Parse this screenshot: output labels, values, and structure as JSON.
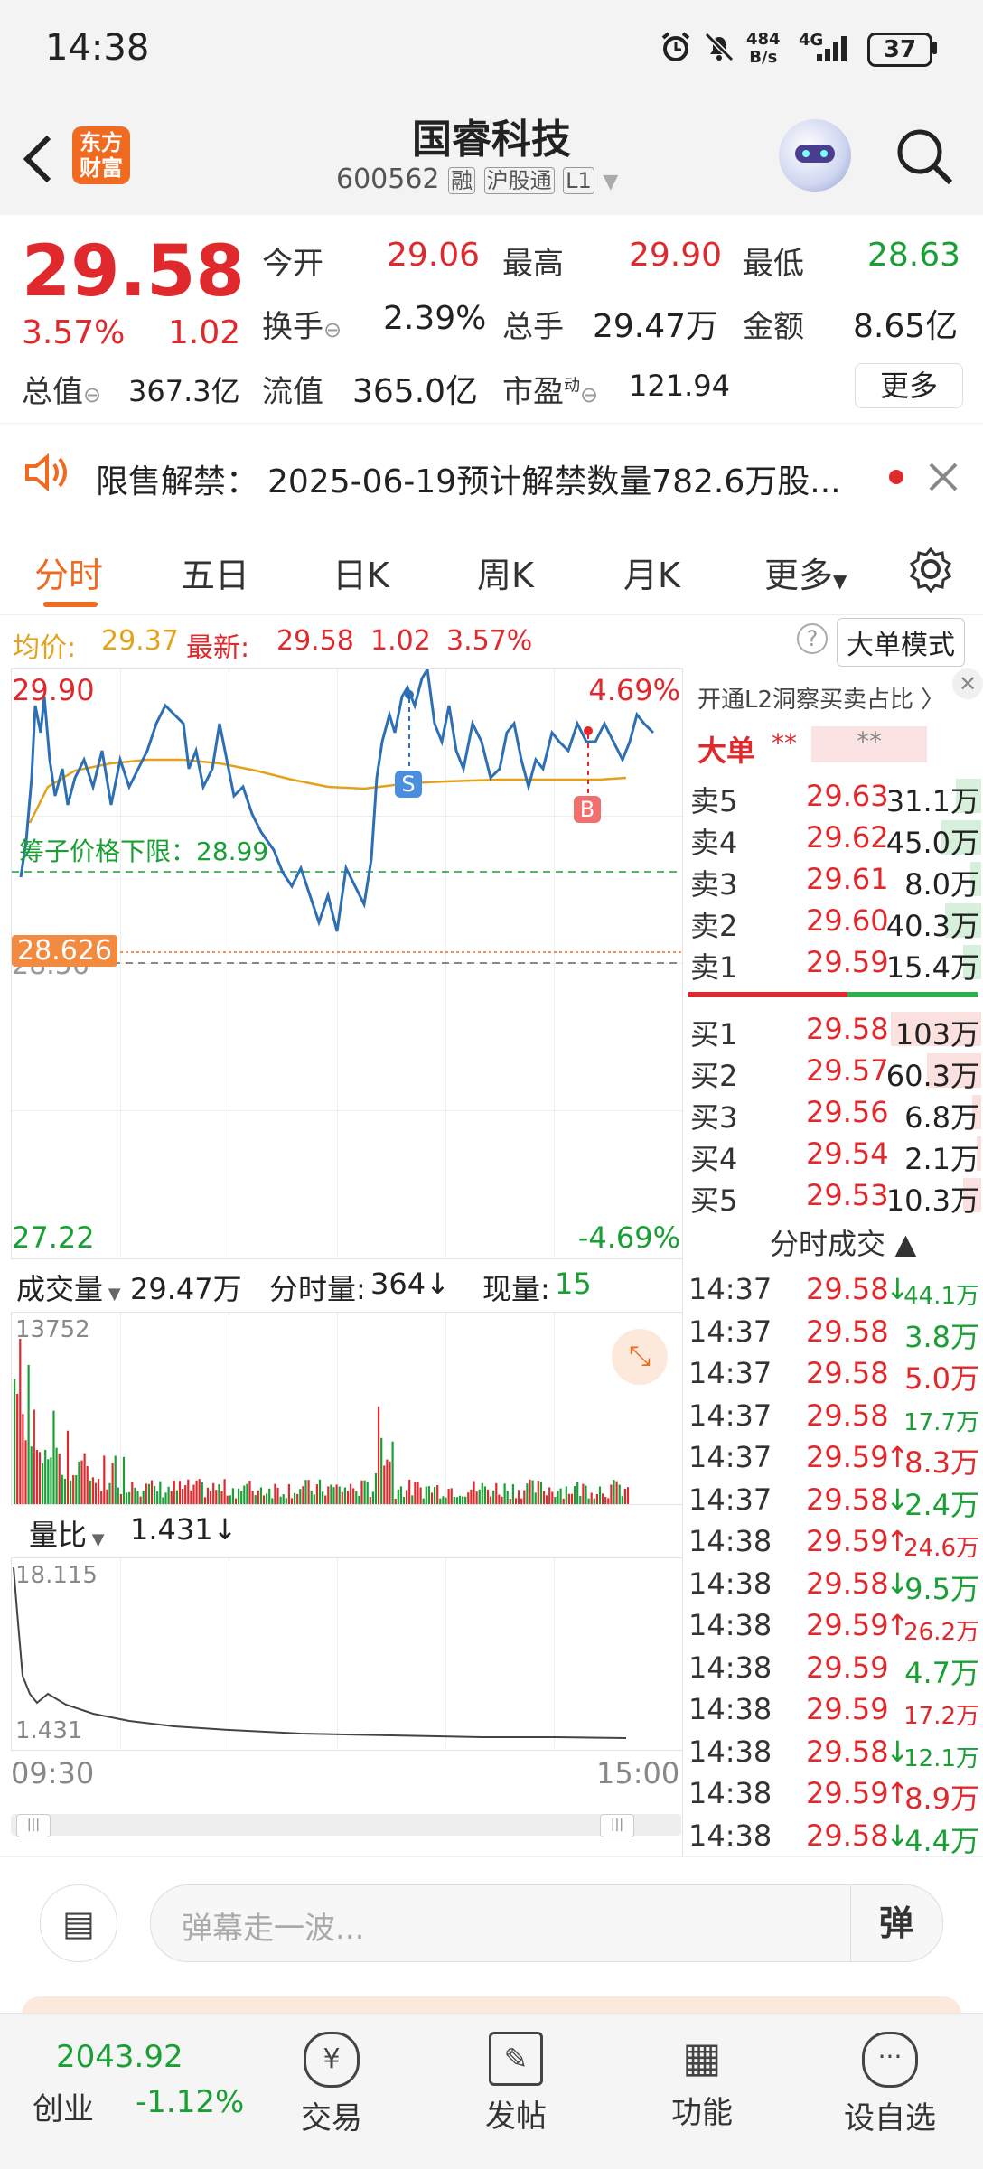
{
  "status_bar": {
    "time": "14:38",
    "net_speed_value": "484",
    "net_speed_unit": "B/s",
    "network": "4G",
    "battery": "37"
  },
  "header": {
    "title": "国睿科技",
    "code": "600562",
    "tags": [
      "融",
      "沪股通",
      "L1"
    ],
    "logo_line1": "东方",
    "logo_line2": "财富"
  },
  "quote": {
    "price": "29.58",
    "change_pct": "3.57%",
    "change": "1.02",
    "open_label": "今开",
    "open": "29.06",
    "high_label": "最高",
    "high": "29.90",
    "low_label": "最低",
    "low": "28.63",
    "turnover_label": "换手",
    "turnover": "2.39%",
    "volume_label": "总手",
    "volume": "29.47万",
    "amount_label": "金额",
    "amount": "8.65亿",
    "mktcap_label": "总值",
    "mktcap": "367.3亿",
    "float_label": "流值",
    "float_cap": "365.0亿",
    "pe_label": "市盈",
    "pe_sup": "动",
    "pe": "121.94",
    "more_label": "更多"
  },
  "notice": {
    "label": "限售解禁：",
    "text": "2025-06-19预计解禁数量782.6万股..."
  },
  "tabs": [
    "分时",
    "五日",
    "日K",
    "周K",
    "月K",
    "更多"
  ],
  "avg_bar": {
    "avg_label": "均价:",
    "avg": "29.37",
    "latest_label": "最新:",
    "latest": "29.58",
    "change": "1.02",
    "change_pct": "3.57%",
    "mode_label": "大单模式"
  },
  "price_chart": {
    "top_price": "29.90",
    "top_pct": "4.69%",
    "bottom_price": "27.22",
    "bottom_pct": "-4.69%",
    "prev_close": "28.56",
    "low_marker": "28.626",
    "limit_label": "筹子价格下限：28.99",
    "sell_marker": "S",
    "buy_marker": "B"
  },
  "volume_chart": {
    "label": "成交量",
    "total": "29.47万",
    "fs_label": "分时量:",
    "fs_value": "364↓",
    "cur_label": "现量:",
    "cur_value": "15",
    "max": "13752"
  },
  "ratio_chart": {
    "label": "量比",
    "value": "1.431↓",
    "max": "18.115",
    "min": "1.431"
  },
  "time_axis": {
    "start": "09:30",
    "end": "15:00"
  },
  "orderbook": {
    "l2_label": "开通L2洞察买卖占比 〉",
    "big_label": "大单",
    "big_stars": "**",
    "big_stars2": "**",
    "asks": [
      {
        "label": "卖5",
        "price": "29.63",
        "vol": "31.1万"
      },
      {
        "label": "卖4",
        "price": "29.62",
        "vol": "45.0万"
      },
      {
        "label": "卖3",
        "price": "29.61",
        "vol": "8.0万"
      },
      {
        "label": "卖2",
        "price": "29.60",
        "vol": "40.3万"
      },
      {
        "label": "卖1",
        "price": "29.59",
        "vol": "15.4万"
      }
    ],
    "bids": [
      {
        "label": "买1",
        "price": "29.58",
        "vol": "103万"
      },
      {
        "label": "买2",
        "price": "29.57",
        "vol": "60.3万"
      },
      {
        "label": "买3",
        "price": "29.56",
        "vol": "6.8万"
      },
      {
        "label": "买4",
        "price": "29.54",
        "vol": "2.1万"
      },
      {
        "label": "买5",
        "price": "29.53",
        "vol": "10.3万"
      }
    ],
    "ticks_title": "分时成交 ▲",
    "ticks": [
      {
        "time": "14:37",
        "price": "29.58",
        "arrow": "↓",
        "vol": "44.1万"
      },
      {
        "time": "14:37",
        "price": "29.58",
        "arrow": "",
        "vol": "3.8万"
      },
      {
        "time": "14:37",
        "price": "29.58",
        "arrow": "",
        "vol": "5.0万"
      },
      {
        "time": "14:37",
        "price": "29.58",
        "arrow": "",
        "vol": "17.7万"
      },
      {
        "time": "14:37",
        "price": "29.59",
        "arrow": "↑",
        "vol": "8.3万"
      },
      {
        "time": "14:37",
        "price": "29.58",
        "arrow": "↓",
        "vol": "2.4万"
      },
      {
        "time": "14:38",
        "price": "29.59",
        "arrow": "↑",
        "vol": "24.6万"
      },
      {
        "time": "14:38",
        "price": "29.58",
        "arrow": "↓",
        "vol": "9.5万"
      },
      {
        "time": "14:38",
        "price": "29.59",
        "arrow": "↑",
        "vol": "26.2万"
      },
      {
        "time": "14:38",
        "price": "29.59",
        "arrow": "",
        "vol": "4.7万"
      },
      {
        "time": "14:38",
        "price": "29.59",
        "arrow": "",
        "vol": "17.2万"
      },
      {
        "time": "14:38",
        "price": "29.58",
        "arrow": "↓",
        "vol": "12.1万"
      },
      {
        "time": "14:38",
        "price": "29.59",
        "arrow": "↑",
        "vol": "8.9万"
      },
      {
        "time": "14:38",
        "price": "29.58",
        "arrow": "↓",
        "vol": "4.4万"
      }
    ]
  },
  "comment_bar": {
    "placeholder": "弹幕走一波...",
    "danmu_label": "弹"
  },
  "bottom_nav": {
    "index_value": "2043.92",
    "index_name": "创业",
    "index_change": "-1.12%",
    "items": [
      "交易",
      "发帖",
      "功能",
      "设自选"
    ]
  },
  "colors": {
    "up": "#e0292d",
    "down": "#1a9f35",
    "accent": "#f06a20",
    "avg": "#e3a21a",
    "line": "#2d6fb5"
  }
}
